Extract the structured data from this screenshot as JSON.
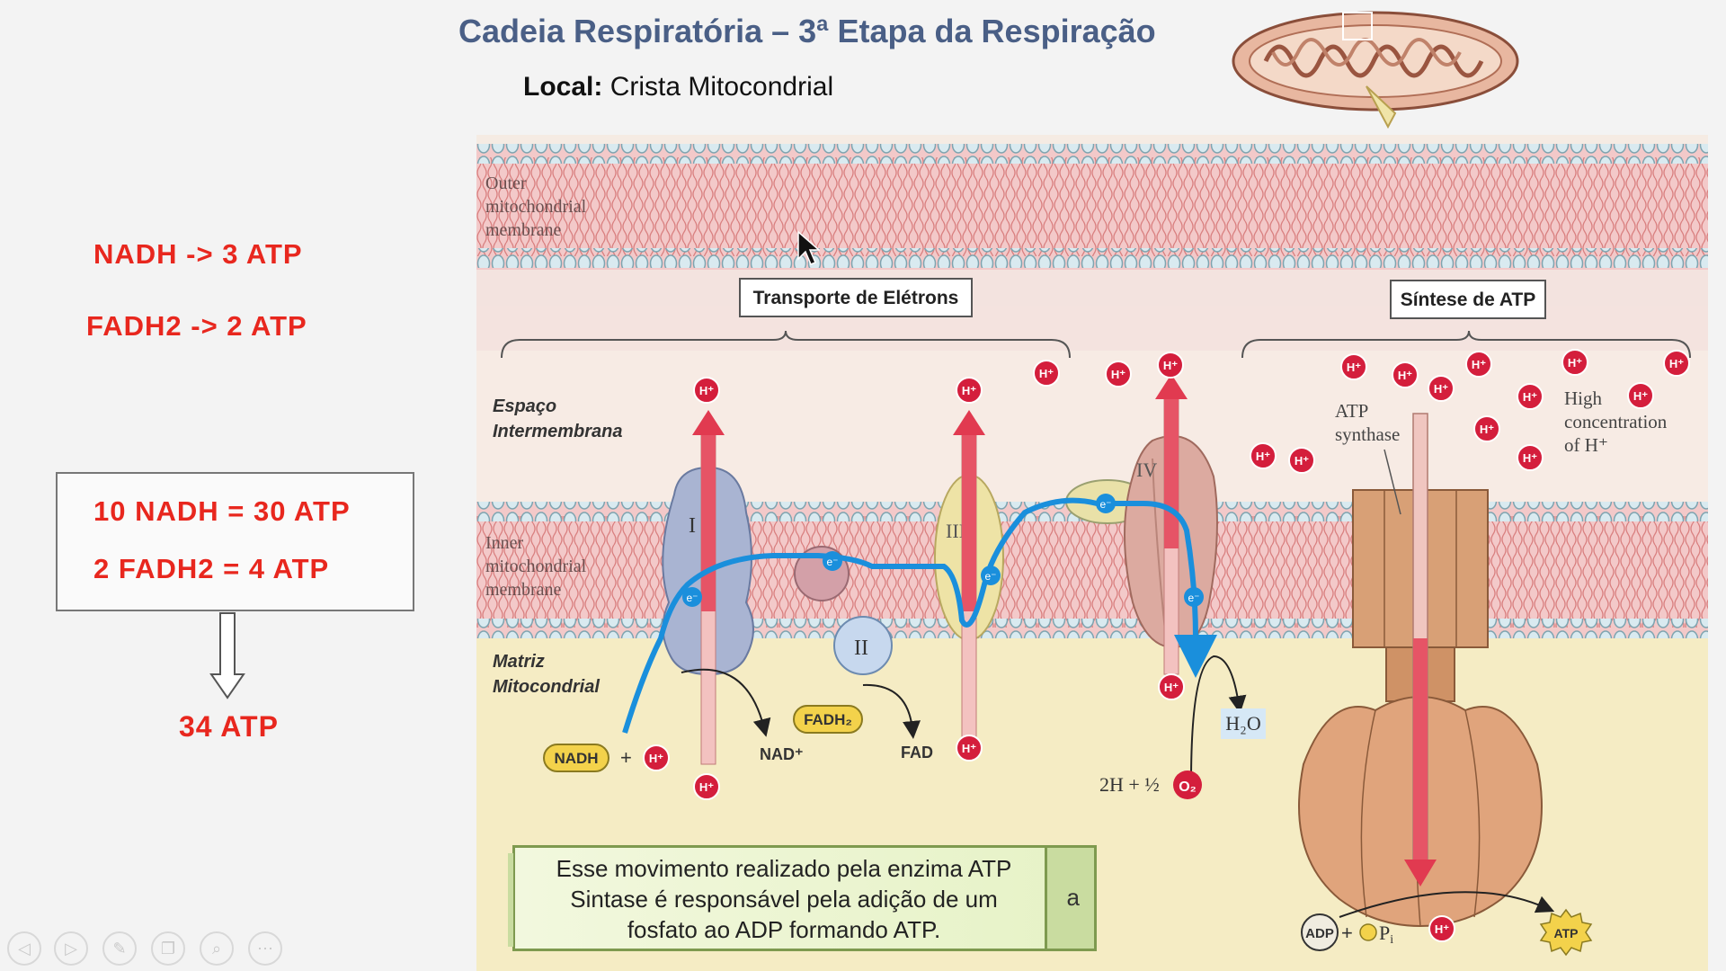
{
  "slide": {
    "title": "Cadeia Respiratória – 3ª Etapa da Respiração",
    "local_label": "Local:",
    "local_value": "Crista Mitocondrial"
  },
  "left_panel": {
    "ratio_nadh": "NADH -> 3 ATP",
    "ratio_fadh2": "FADH2 -> 2 ATP",
    "sum_nadh": "10 NADH = 30 ATP",
    "sum_fadh2": "2 FADH2 = 4 ATP",
    "total": "34 ATP"
  },
  "diagram": {
    "outer_membrane_label": [
      "Outer",
      "mitochondrial",
      "membrane"
    ],
    "inner_membrane_label": [
      "Inner",
      "mitochondrial",
      "membrane"
    ],
    "space_label": [
      "Espaço",
      "Intermembrana"
    ],
    "matrix_label": [
      "Matriz",
      "Mitocondrial"
    ],
    "transport_box": "Transporte de Elétrons",
    "synthesis_box": "Síntese de ATP",
    "complex_1": "I",
    "complex_2": "II",
    "complex_3": "III",
    "complex_4": "IV",
    "atp_synthase_label": [
      "ATP",
      "synthase"
    ],
    "high_concentration_label": [
      "High",
      "concentration",
      "of H⁺"
    ],
    "proton": "H⁺",
    "electron": "e⁻",
    "nadh": "NADH",
    "plus": "+",
    "nad_plus": "NAD⁺",
    "fadh2": "FADH₂",
    "fad": "FAD",
    "water": "H₂O",
    "oxygen_reaction": "2H + ½",
    "oxygen": "O₂",
    "adp": "ADP",
    "phosphate": "P",
    "phosphate_sub": "i",
    "atp": "ATP"
  },
  "note": {
    "text_line1": "Esse movimento realizado pela enzima ATP",
    "text_line2": "Sintase é responsável pela adição de um",
    "text_line3": "fosfato ao ADP formando ATP.",
    "side_letter": "a"
  },
  "toolbar": {
    "prev_icon": "◁",
    "next_icon": "▷",
    "pen_icon": "✎",
    "slides_icon": "❐",
    "zoom_icon": "⌕",
    "more_icon": "⋯"
  },
  "colors": {
    "title": "#4a5f86",
    "highlight": "#e8271e",
    "membrane_pink": "#f1c6c6",
    "matrix": "#f5ecc4",
    "electron_path": "#1a8fdc",
    "proton": "#d41e3c"
  }
}
